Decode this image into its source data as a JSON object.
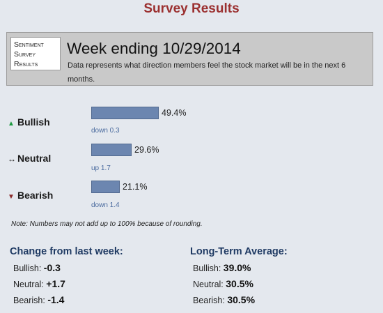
{
  "page": {
    "title": "Survey Results"
  },
  "header": {
    "label_lines": [
      "Sentiment",
      "Survey",
      "Results"
    ],
    "week": "Week ending 10/29/2014",
    "description": "Data represents what direction members feel the stock market will be in the next 6 months."
  },
  "sentiment": {
    "bullish": {
      "label": "Bullish",
      "percent": "49.4%",
      "value": 49.4,
      "change": "down 0.3",
      "icon": "triangle-up-icon"
    },
    "neutral": {
      "label": "Neutral",
      "percent": "29.6%",
      "value": 29.6,
      "change": "up 1.7",
      "icon": "double-arrow-icon"
    },
    "bearish": {
      "label": "Bearish",
      "percent": "21.1%",
      "value": 21.1,
      "change": "down 1.4",
      "icon": "triangle-down-icon"
    }
  },
  "note": "Note: Numbers may not add up to 100% because of rounding.",
  "change_from_last_week": {
    "heading": "Change from last week:",
    "bullish_label": "Bullish:",
    "bullish_value": "-0.3",
    "neutral_label": "Neutral:",
    "neutral_value": "+1.7",
    "bearish_label": "Bearish:",
    "bearish_value": "-1.4"
  },
  "long_term_average": {
    "heading": "Long-Term Average:",
    "bullish_label": "Bullish:",
    "bullish_value": "39.0%",
    "neutral_label": "Neutral:",
    "neutral_value": "30.5%",
    "bearish_label": "Bearish:",
    "bearish_value": "30.5%"
  },
  "colors": {
    "title": "#9b3030",
    "bar": "#6c86b0",
    "section_heading": "#1f3a63",
    "change_text": "#4a6a9e"
  }
}
